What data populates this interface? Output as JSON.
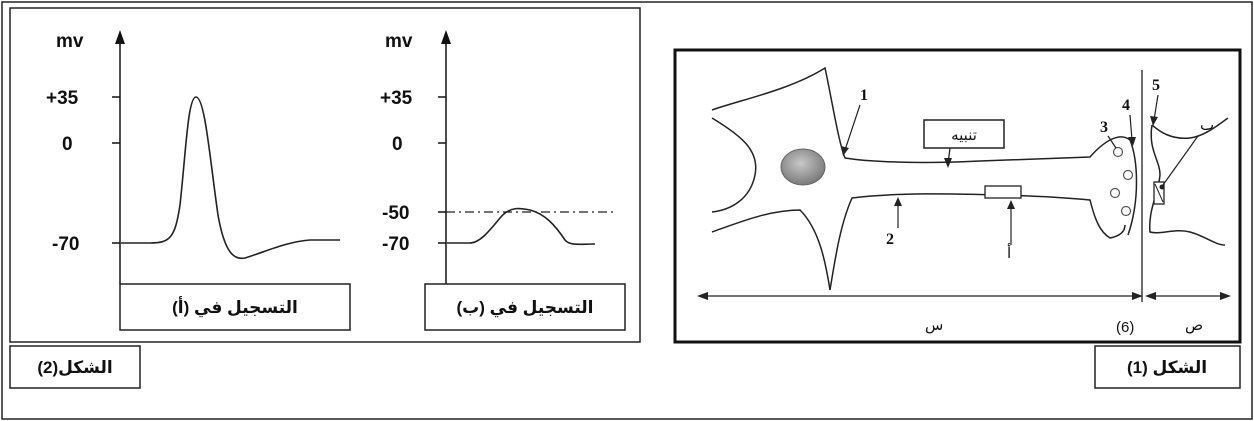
{
  "figure2": {
    "caption": "الشكل(2)",
    "graph_a": {
      "y_unit": "mv",
      "ticks": [
        "+35",
        "0",
        "-70"
      ],
      "label": "التسجيل في (أ)"
    },
    "graph_b": {
      "y_unit": "mv",
      "ticks": [
        "+35",
        "0",
        "-50",
        "-70"
      ],
      "label": "التسجيل في (ب)"
    }
  },
  "figure1": {
    "caption": "الشكل (1)",
    "stimulus_label": "تنبيه",
    "numbers": [
      "1",
      "2",
      "3",
      "4",
      "5"
    ],
    "point_a": "أ",
    "point_b": "ب",
    "region_x": "س",
    "region_y": "ص",
    "label_6": "(6)"
  },
  "chart_data": [
    {
      "type": "line",
      "title": "التسجيل في (أ)",
      "ylabel": "mv",
      "yticks": [
        35,
        0,
        -70
      ],
      "series": [
        {
          "values": [
            -70,
            -70,
            -68,
            -30,
            35,
            -20,
            -75,
            -72,
            -70,
            -70
          ]
        }
      ]
    },
    {
      "type": "line",
      "title": "التسجيل في (ب)",
      "ylabel": "mv",
      "yticks": [
        35,
        0,
        -50,
        -70
      ],
      "threshold": -50,
      "series": [
        {
          "values": [
            -70,
            -70,
            -65,
            -52,
            -50,
            -52,
            -65,
            -70,
            -70
          ]
        }
      ]
    }
  ]
}
